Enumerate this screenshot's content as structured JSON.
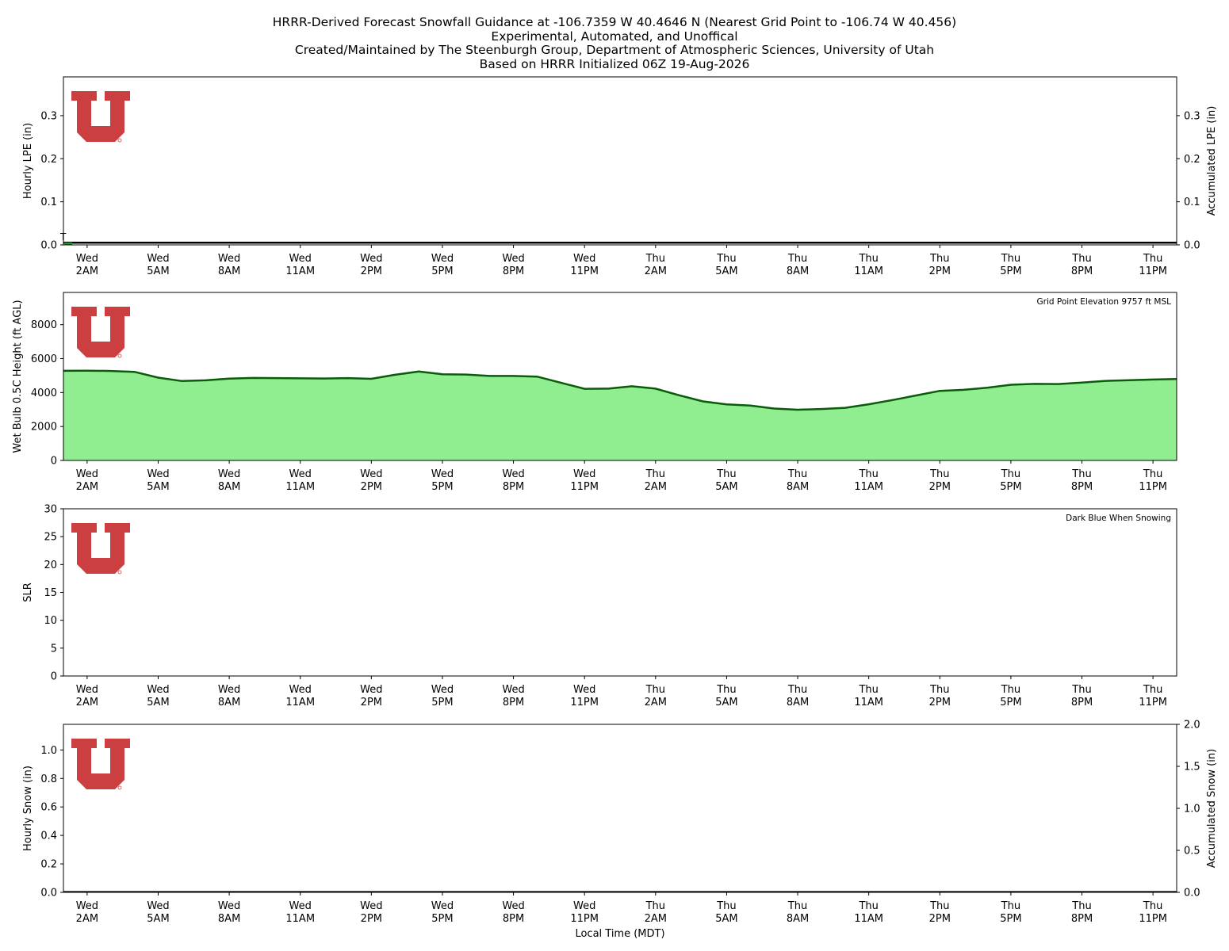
{
  "title_lines": [
    "HRRR-Derived Forecast Snowfall Guidance at -106.7359 W 40.4646 N (Nearest Grid Point to -106.74 W 40.456)",
    "Experimental, Automated, and Unoffical",
    "Created/Maintained by The Steenburgh Group, Department of Atmospheric Sciences, University of Utah",
    "Based on HRRR Initialized 06Z 19-Aug-2026"
  ],
  "logo": {
    "text": "U",
    "colors": {
      "red": "#cc3f40"
    }
  },
  "colors": {
    "fill_green": "#90ee90",
    "line_green": "#0a5c0a",
    "trace_green": "#2e8b2e"
  },
  "chart_data": [
    {
      "type": "bar",
      "id": "lpe",
      "ylabel": "Hourly LPE (in)",
      "y2label": "Accumulated LPE (in)",
      "ylim": [
        0,
        0.39
      ],
      "y2lim": [
        0,
        0.39
      ],
      "yticks": [
        0.0,
        0.1,
        0.2,
        0.3
      ],
      "y2ticks": [
        0.0,
        0.1,
        0.2,
        0.3
      ],
      "trace_label": "T",
      "hourly": [],
      "accumulated_line_value": 0.005,
      "xlim_hours": [
        -1,
        46
      ],
      "xticks": [
        {
          "h": 0,
          "day": "Wed",
          "time": "2AM"
        },
        {
          "h": 3,
          "day": "Wed",
          "time": "5AM"
        },
        {
          "h": 6,
          "day": "Wed",
          "time": "8AM"
        },
        {
          "h": 9,
          "day": "Wed",
          "time": "11AM"
        },
        {
          "h": 12,
          "day": "Wed",
          "time": "2PM"
        },
        {
          "h": 15,
          "day": "Wed",
          "time": "5PM"
        },
        {
          "h": 18,
          "day": "Wed",
          "time": "8PM"
        },
        {
          "h": 21,
          "day": "Wed",
          "time": "11PM"
        },
        {
          "h": 24,
          "day": "Thu",
          "time": "2AM"
        },
        {
          "h": 27,
          "day": "Thu",
          "time": "5AM"
        },
        {
          "h": 30,
          "day": "Thu",
          "time": "8AM"
        },
        {
          "h": 33,
          "day": "Thu",
          "time": "11AM"
        },
        {
          "h": 36,
          "day": "Thu",
          "time": "2PM"
        },
        {
          "h": 39,
          "day": "Thu",
          "time": "5PM"
        },
        {
          "h": 42,
          "day": "Thu",
          "time": "8PM"
        },
        {
          "h": 45,
          "day": "Thu",
          "time": "11PM"
        }
      ]
    },
    {
      "type": "area",
      "id": "wetbulb",
      "ylabel": "Wet Bulb 0.5C Height (ft AGL)",
      "annotation": "Grid Point Elevation 9757 ft MSL",
      "ylim": [
        0,
        9900
      ],
      "yticks": [
        0,
        2000,
        4000,
        6000,
        8000
      ],
      "x_hours": [
        -1,
        0,
        1,
        2,
        3,
        4,
        5,
        6,
        7,
        8,
        9,
        10,
        11,
        12,
        13,
        14,
        15,
        16,
        17,
        18,
        19,
        20,
        21,
        22,
        23,
        24,
        25,
        26,
        27,
        28,
        29,
        30,
        31,
        32,
        33,
        34,
        35,
        36,
        37,
        38,
        39,
        40,
        41,
        42,
        43,
        44,
        45,
        46
      ],
      "values": [
        5280,
        5290,
        5270,
        5220,
        4880,
        4680,
        4720,
        4820,
        4860,
        4850,
        4840,
        4830,
        4850,
        4810,
        5050,
        5240,
        5080,
        5060,
        4980,
        4980,
        4940,
        4580,
        4220,
        4230,
        4370,
        4230,
        3840,
        3480,
        3300,
        3230,
        3060,
        2990,
        3030,
        3100,
        3310,
        3560,
        3830,
        4100,
        4160,
        4280,
        4460,
        4510,
        4500,
        4590,
        4690,
        4730,
        4770,
        4800
      ]
    },
    {
      "type": "bar",
      "id": "slr",
      "ylabel": "SLR",
      "annotation": "Dark Blue When Snowing",
      "ylim": [
        0,
        30
      ],
      "yticks": [
        0,
        5,
        10,
        15,
        20,
        25,
        30
      ],
      "values": []
    },
    {
      "type": "bar",
      "id": "snow",
      "ylabel": "Hourly Snow (in)",
      "y2label": "Accumulated Snow (in)",
      "xlabel": "Local Time (MDT)",
      "ylim": [
        0,
        1.18
      ],
      "y2lim": [
        0,
        2.0
      ],
      "yticks": [
        0.0,
        0.2,
        0.4,
        0.6,
        0.8,
        1.0
      ],
      "y2ticks": [
        0.0,
        0.5,
        1.0,
        1.5,
        2.0
      ],
      "hourly": [],
      "accumulated": 0.0
    }
  ]
}
